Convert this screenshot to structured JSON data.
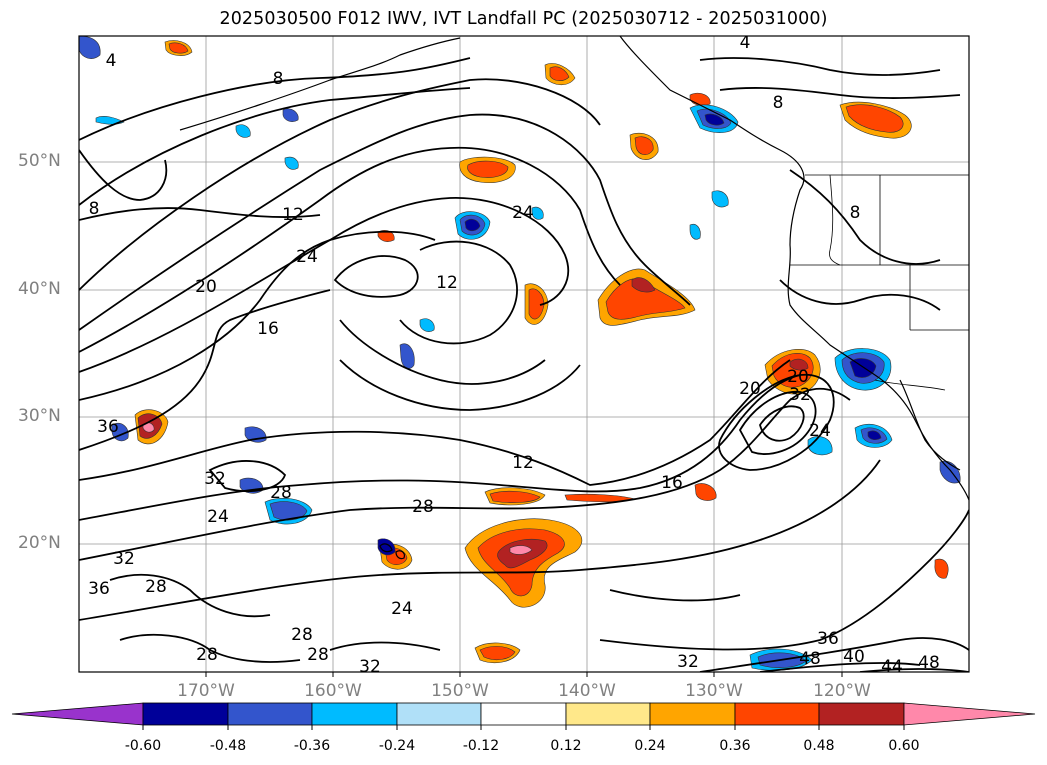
{
  "title": "2025030500 F012 IWV, IVT Landfall PC (2025030712 - 2025031000)",
  "lat_labels": [
    "50°N",
    "40°N",
    "30°N",
    "20°N"
  ],
  "lon_labels": [
    "170°W",
    "160°W",
    "150°W",
    "140°W",
    "130°W",
    "120°W"
  ],
  "contour_labels": [
    "4",
    "8",
    "4",
    "8",
    "8",
    "12",
    "24",
    "24",
    "20",
    "16",
    "12",
    "20",
    "36",
    "32",
    "28",
    "24",
    "12",
    "28",
    "16",
    "32",
    "20",
    "24",
    "32",
    "36",
    "28",
    "24",
    "28",
    "28",
    "32",
    "32",
    "36",
    "40",
    "48",
    "44",
    "48",
    "28",
    "8"
  ],
  "colorbar": {
    "ticks": [
      "-0.60",
      "-0.48",
      "-0.36",
      "-0.24",
      "-0.12",
      "0.12",
      "0.24",
      "0.36",
      "0.48",
      "0.60"
    ],
    "colors": [
      "#9933cc",
      "#000099",
      "#3355cc",
      "#00bbff",
      "#b0e0f8",
      "#ffffff",
      "#ffe88a",
      "#ffa500",
      "#ff4500",
      "#b22222",
      "#ff88aa"
    ]
  }
}
